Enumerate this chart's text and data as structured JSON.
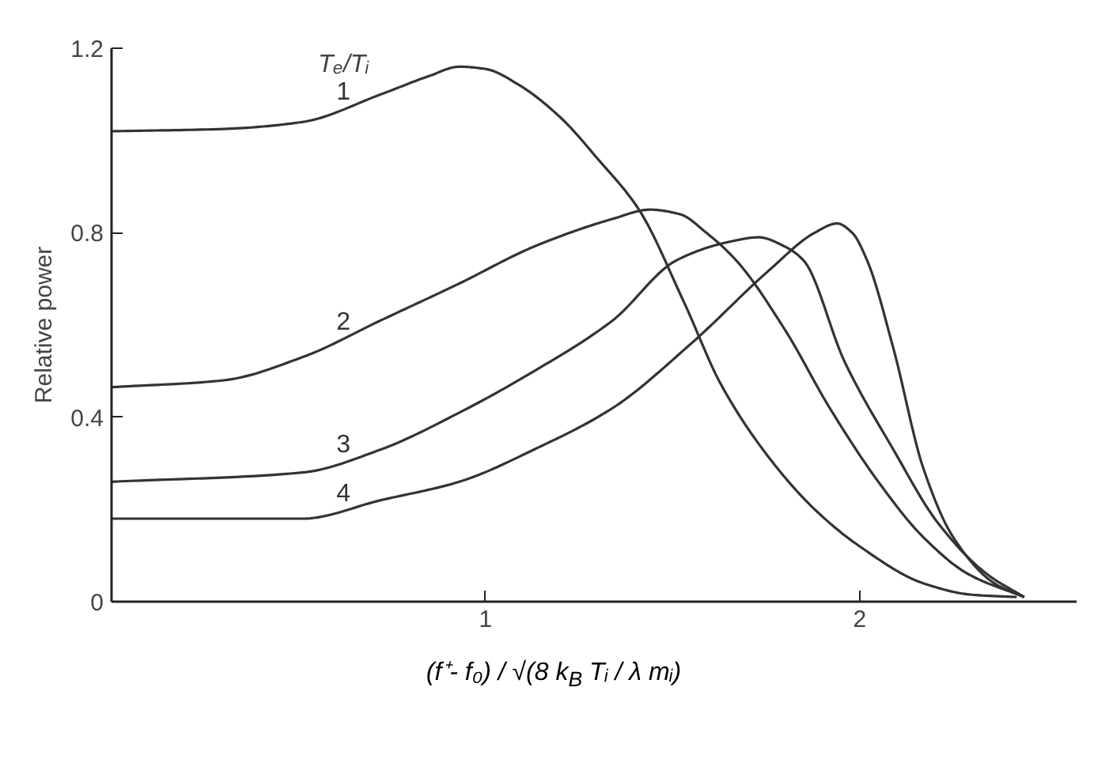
{
  "chart_data": {
    "type": "line",
    "legend_title": "Tₑ/Tᵢ",
    "ylabel": "Relative power",
    "xlabel": "(f⁺- f₀) / √(8 k$_{B}$ Tᵢ / λ mᵢ)",
    "xlim": [
      0,
      2.58
    ],
    "ylim": [
      0,
      1.2
    ],
    "xticks": [
      1,
      2
    ],
    "yticks": [
      0,
      0.4,
      0.8,
      1.2
    ],
    "grid": false,
    "marker": "none",
    "line_style": "solid",
    "series": [
      {
        "name": "1",
        "color": "#333333",
        "x": [
          0,
          0.3,
          0.51,
          0.72,
          0.85,
          0.93,
          1.0,
          1.09,
          1.2,
          1.3,
          1.41,
          1.53,
          1.63,
          1.76,
          1.88,
          2.0,
          2.17,
          2.3,
          2.42
        ],
        "values": [
          1.02,
          1.025,
          1.04,
          1.1,
          1.14,
          1.16,
          1.155,
          1.12,
          1.05,
          0.96,
          0.85,
          0.65,
          0.47,
          0.31,
          0.2,
          0.12,
          0.04,
          0.015,
          0.01
        ]
      },
      {
        "name": "2",
        "color": "#333333",
        "x": [
          0,
          0.3,
          0.51,
          0.72,
          0.93,
          1.13,
          1.34,
          1.44,
          1.52,
          1.59,
          1.67,
          1.8,
          1.92,
          2.05,
          2.17,
          2.29,
          2.44
        ],
        "values": [
          0.465,
          0.48,
          0.53,
          0.61,
          0.69,
          0.77,
          0.83,
          0.85,
          0.84,
          0.8,
          0.74,
          0.59,
          0.42,
          0.26,
          0.14,
          0.06,
          0.01
        ]
      },
      {
        "name": "3",
        "color": "#333333",
        "x": [
          0,
          0.51,
          0.72,
          0.93,
          1.13,
          1.34,
          1.51,
          1.65,
          1.73,
          1.8,
          1.85,
          1.96,
          2.09,
          2.21,
          2.34,
          2.44
        ],
        "values": [
          0.26,
          0.28,
          0.33,
          0.41,
          0.5,
          0.61,
          0.74,
          0.78,
          0.79,
          0.77,
          0.74,
          0.52,
          0.33,
          0.17,
          0.06,
          0.01
        ]
      },
      {
        "name": "4",
        "color": "#333333",
        "x": [
          0,
          0.51,
          0.72,
          0.93,
          1.13,
          1.34,
          1.55,
          1.76,
          1.88,
          1.94,
          1.98,
          2.02,
          2.09,
          2.17,
          2.25,
          2.36,
          2.44
        ],
        "values": [
          0.18,
          0.18,
          0.22,
          0.26,
          0.33,
          0.42,
          0.56,
          0.72,
          0.8,
          0.82,
          0.8,
          0.74,
          0.55,
          0.29,
          0.14,
          0.04,
          0.01
        ]
      }
    ]
  }
}
